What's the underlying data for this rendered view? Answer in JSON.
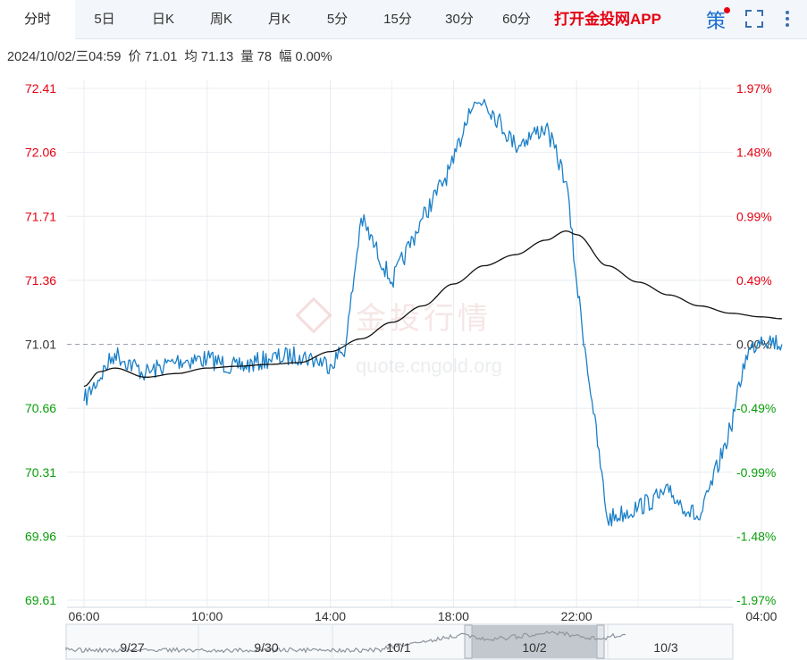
{
  "tabs": [
    {
      "label": "分时",
      "active": true
    },
    {
      "label": "5日"
    },
    {
      "label": "日K"
    },
    {
      "label": "周K"
    },
    {
      "label": "月K"
    },
    {
      "label": "5分"
    },
    {
      "label": "15分"
    },
    {
      "label": "30分"
    },
    {
      "label": "60分"
    }
  ],
  "app_link": "打开金投网APP",
  "strategy_label": "策",
  "info": {
    "datetime": "2024/10/02/三04:59",
    "price_label": "价",
    "price": "71.01",
    "avg_label": "均",
    "avg": "71.13",
    "vol_label": "量",
    "vol": "78",
    "amp_label": "幅",
    "amp": "0.00%"
  },
  "watermark": {
    "cn": "金投行情",
    "url": "quote.cngold.org"
  },
  "colors": {
    "up": "#e60012",
    "down": "#0a9e0a",
    "price_line": "#1a7fc7",
    "avg_line": "#111111"
  },
  "chart_data": {
    "type": "line",
    "reference_price": 71.01,
    "ylim": [
      69.61,
      72.41
    ],
    "y_ticks_left": [
      "72.41",
      "72.06",
      "71.71",
      "71.36",
      "71.01",
      "70.66",
      "70.31",
      "69.96",
      "69.61"
    ],
    "y_ticks_right": [
      "1.97%",
      "1.48%",
      "0.99%",
      "0.49%",
      "0.00%",
      "-0.49%",
      "-0.99%",
      "-1.48%",
      "-1.97%"
    ],
    "x_ticks": [
      "06:00",
      "10:00",
      "14:00",
      "18:00",
      "22:00",
      "04:00"
    ],
    "grid": true,
    "series": [
      {
        "key": "price",
        "x": [
          "06:00",
          "07:00",
          "08:00",
          "09:00",
          "10:00",
          "11:00",
          "12:00",
          "13:00",
          "14:00",
          "14:30",
          "15:00",
          "16:00",
          "17:00",
          "18:00",
          "18:30",
          "19:00",
          "20:00",
          "21:00",
          "21:40",
          "22:00",
          "22:30",
          "23:00",
          "00:00",
          "01:00",
          "02:00",
          "03:00",
          "03:30",
          "04:00",
          "04:40"
        ],
        "y": [
          70.7,
          70.96,
          70.85,
          70.92,
          70.93,
          70.88,
          70.93,
          70.95,
          70.9,
          71.0,
          71.7,
          71.35,
          71.7,
          72.0,
          72.3,
          72.35,
          72.1,
          72.2,
          71.9,
          71.35,
          70.7,
          70.05,
          70.12,
          70.2,
          70.05,
          70.55,
          70.95,
          71.05,
          71.01
        ]
      },
      {
        "key": "avg",
        "x": [
          "06:00",
          "06:30",
          "07:00",
          "08:00",
          "09:00",
          "10:00",
          "11:00",
          "12:00",
          "13:00",
          "14:00",
          "15:00",
          "16:00",
          "17:00",
          "18:00",
          "19:00",
          "20:00",
          "21:00",
          "21:40",
          "22:00",
          "23:00",
          "00:00",
          "01:00",
          "02:00",
          "03:00",
          "04:00",
          "04:40"
        ],
        "y": [
          70.78,
          70.86,
          70.88,
          70.83,
          70.85,
          70.88,
          70.89,
          70.9,
          70.91,
          70.97,
          71.04,
          71.13,
          71.22,
          71.34,
          71.44,
          71.5,
          71.58,
          71.63,
          71.61,
          71.44,
          71.35,
          71.28,
          71.22,
          71.18,
          71.16,
          71.15
        ]
      }
    ],
    "navigator": {
      "labels": [
        "9/27",
        "9/30",
        "10/1",
        "10/2",
        "10/3"
      ],
      "selected": "10/2"
    }
  }
}
